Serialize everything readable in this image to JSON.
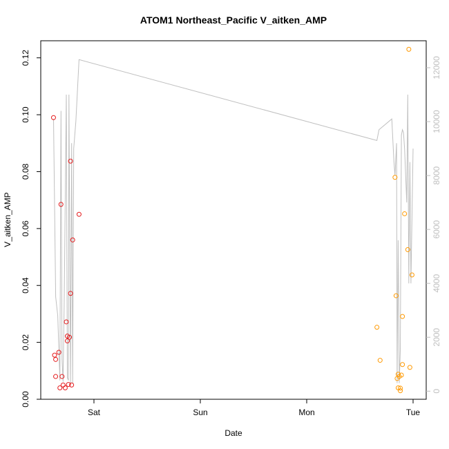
{
  "chart_data": {
    "type": "scatter",
    "title": "ATOM1 Northeast_Pacific V_aitken_AMP",
    "xlabel": "Date",
    "ylabel": "V_aitken_AMP",
    "x_ticks": [
      "Sat",
      "Sun",
      "Mon",
      "Tue"
    ],
    "ylim": [
      0,
      0.126
    ],
    "y_ticks": [
      "0.00",
      "0.02",
      "0.04",
      "0.06",
      "0.08",
      "0.10",
      "0.12"
    ],
    "y2lim": [
      -300,
      13000
    ],
    "y2_ticks": [
      "0",
      "2000",
      "4000",
      "6000",
      "8000",
      "10000",
      "12000"
    ],
    "colors": {
      "series1": "#e41a1c",
      "series2": "#ff9900",
      "line": "#bfbfbf",
      "axes": "#000000",
      "right_axis": "#bfbfbf"
    },
    "series": [
      {
        "marker": "circle",
        "color": "#e41a1c",
        "x_days": [
          -0.38,
          -0.37,
          -0.36,
          -0.36,
          -0.33,
          -0.32,
          -0.31,
          -0.3,
          -0.29,
          -0.27,
          -0.26,
          -0.25,
          -0.25,
          -0.24,
          -0.23,
          -0.22,
          -0.22,
          -0.21,
          -0.2,
          -0.14
        ],
        "y": [
          0.099,
          0.0155,
          0.014,
          0.008,
          0.0165,
          0.004,
          0.0685,
          0.008,
          0.005,
          0.004,
          0.0272,
          0.0222,
          0.0205,
          0.0052,
          0.0218,
          0.0372,
          0.0837,
          0.005,
          0.056,
          0.065
        ]
      },
      {
        "marker": "circle",
        "color": "#ff9900",
        "x_days": [
          2.66,
          2.69,
          2.83,
          2.84,
          2.85,
          2.86,
          2.86,
          2.87,
          2.88,
          2.88,
          2.89,
          2.9,
          2.9,
          2.92,
          2.95,
          2.96,
          2.97,
          2.99
        ],
        "y": [
          0.0253,
          0.0137,
          0.078,
          0.0364,
          0.0073,
          0.0088,
          0.004,
          0.008,
          0.003,
          0.0039,
          0.0085,
          0.0291,
          0.0122,
          0.0652,
          0.0526,
          0.123,
          0.0112,
          0.0437
        ]
      }
    ],
    "line_series": {
      "axis": "right",
      "color": "#bfbfbf",
      "x_days": [
        -0.38,
        -0.36,
        -0.34,
        -0.32,
        -0.31,
        -0.3,
        -0.29,
        -0.28,
        -0.26,
        -0.25,
        -0.24,
        -0.235,
        -0.22,
        -0.21,
        -0.2,
        -0.19,
        -0.17,
        -0.14,
        2.66,
        2.68,
        2.8,
        2.82,
        2.83,
        2.845,
        2.85,
        2.86,
        2.87,
        2.88,
        2.89,
        2.9,
        2.91,
        2.92,
        2.94,
        2.95,
        2.96,
        2.97,
        2.98,
        3.0
      ],
      "y": [
        10100,
        3500,
        2800,
        400,
        10400,
        1200,
        350,
        3200,
        11000,
        500,
        400,
        11000,
        300,
        9200,
        300,
        9000,
        10000,
        12300,
        9300,
        9700,
        10100,
        8500,
        8000,
        9200,
        300,
        5600,
        300,
        1500,
        9500,
        9700,
        9600,
        9000,
        7000,
        11000,
        4000,
        8500,
        4000,
        9000
      ]
    }
  }
}
